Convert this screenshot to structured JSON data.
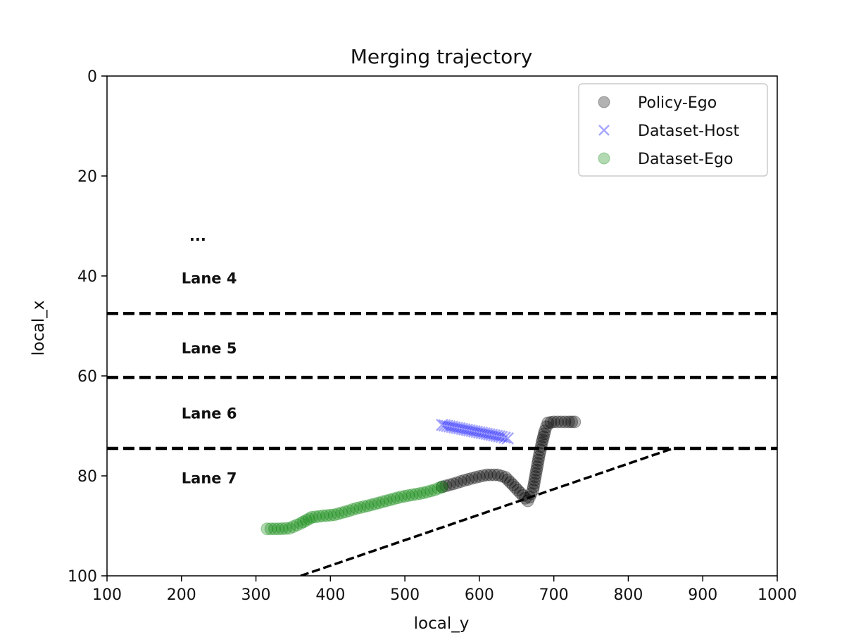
{
  "chart_data": {
    "type": "scatter",
    "title": "Merging trajectory",
    "xlabel": "local_y",
    "ylabel": "local_x",
    "xlim": [
      100,
      1000
    ],
    "ylim": [
      0,
      100
    ],
    "y_inverted": true,
    "xticks": [
      100,
      200,
      300,
      400,
      500,
      600,
      700,
      800,
      900,
      1000
    ],
    "yticks": [
      0,
      20,
      40,
      60,
      80,
      100
    ],
    "grid": false,
    "legend": "top-right",
    "lane_boundaries": [
      47.5,
      60.3,
      74.5
    ],
    "ramp_line": {
      "x": [
        360,
        860
      ],
      "y": [
        100,
        74.5
      ]
    },
    "annotations": [
      {
        "text": "...",
        "x": 220,
        "y": 32
      },
      {
        "text": "Lane 4",
        "x": 200,
        "y": 40.5
      },
      {
        "text": "Lane 5",
        "x": 200,
        "y": 54.5
      },
      {
        "text": "Lane 6",
        "x": 200,
        "y": 67.5
      },
      {
        "text": "Lane 7",
        "x": 200,
        "y": 80.5
      }
    ],
    "series": [
      {
        "name": "Policy-Ego",
        "marker": "circle",
        "color": "#000000",
        "x": [
          550,
          565,
          580,
          595,
          610,
          625,
          635,
          645,
          655,
          665,
          672,
          676,
          680,
          684,
          688,
          692,
          700,
          710,
          720,
          728
        ],
        "y": [
          82.2,
          81.6,
          80.9,
          80.3,
          79.8,
          79.8,
          80.3,
          81.8,
          83.4,
          85.0,
          82.8,
          79.5,
          76.2,
          73.4,
          71.0,
          69.4,
          69.2,
          69.2,
          69.2,
          69.2
        ]
      },
      {
        "name": "Dataset-Host",
        "marker": "x",
        "color": "#0000ff",
        "x": [
          550,
          560,
          570,
          580,
          590,
          600,
          610,
          620,
          630,
          638
        ],
        "y": [
          69.8,
          70.1,
          70.4,
          70.7,
          71.0,
          71.3,
          71.6,
          71.9,
          72.2,
          72.5
        ]
      },
      {
        "name": "Dataset-Ego",
        "marker": "circle",
        "color": "#008000",
        "x": [
          315,
          330,
          345,
          360,
          375,
          390,
          405,
          420,
          435,
          450,
          465,
          480,
          495,
          510,
          525,
          540,
          550
        ],
        "y": [
          90.6,
          90.6,
          90.5,
          89.5,
          88.3,
          88.0,
          87.8,
          87.2,
          86.5,
          86.0,
          85.4,
          84.8,
          84.2,
          83.8,
          83.4,
          82.8,
          82.2
        ]
      }
    ]
  }
}
